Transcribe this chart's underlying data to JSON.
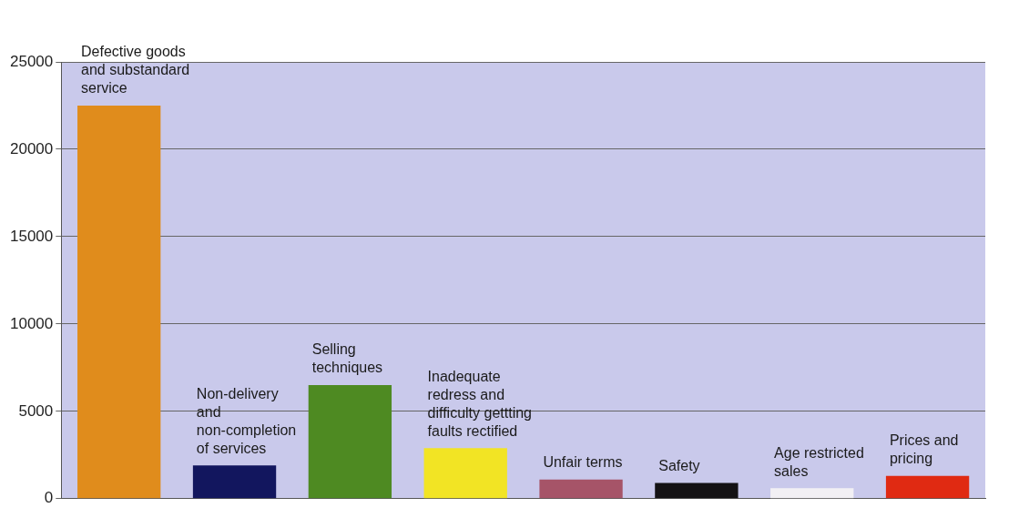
{
  "chart_data": {
    "type": "bar",
    "categories": [
      "Defective goods and substandard service",
      "Non-delivery and non-completion of services",
      "Selling techniques",
      "Inadequate redress and difficulty gettting faults rectified",
      "Unfair terms",
      "Safety",
      "Age restricted sales",
      "Prices and pricing"
    ],
    "values": [
      22500,
      1900,
      6500,
      2900,
      1100,
      900,
      600,
      1300
    ],
    "colors": [
      "#e08c1c",
      "#12165e",
      "#4e8a22",
      "#f2e424",
      "#a65468",
      "#141214",
      "#f2f0f4",
      "#e02a12"
    ],
    "ylim": [
      0,
      25000
    ],
    "yticks": [
      0,
      5000,
      10000,
      15000,
      20000,
      25000
    ],
    "grid": "y"
  }
}
